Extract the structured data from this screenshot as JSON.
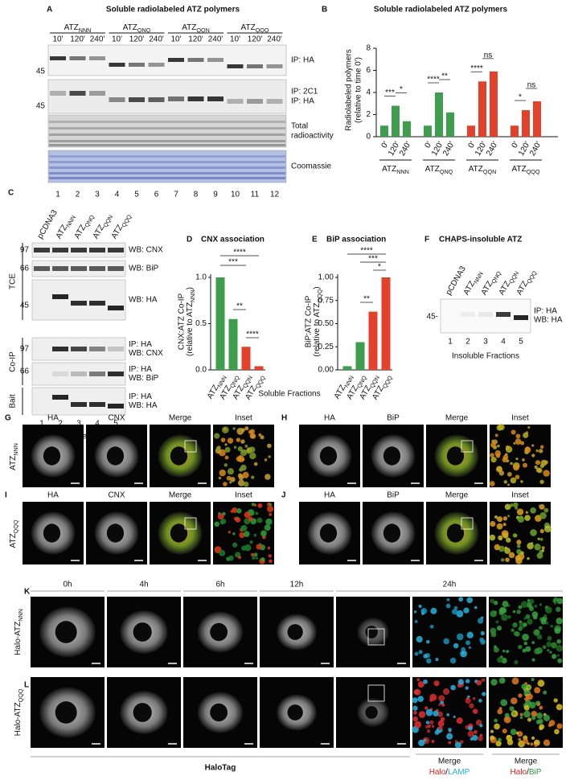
{
  "panel_a": {
    "letter": "A",
    "title": "Soluble radiolabeled ATZ polymers",
    "groups": [
      {
        "text": "ATZ",
        "sub": "NNN"
      },
      {
        "text": "ATZ",
        "sub": "QNQ"
      },
      {
        "text": "ATZ",
        "sub": "QQN"
      },
      {
        "text": "ATZ",
        "sub": "QQQ"
      }
    ],
    "times": [
      "10'",
      "120'",
      "240'"
    ],
    "blot_labels": [
      [
        "IP: HA"
      ],
      [
        "IP: 2C1",
        "IP: HA"
      ],
      [
        "Total",
        "radioactivity"
      ],
      [
        "Coomassie"
      ]
    ],
    "mw": [
      "45",
      "45"
    ],
    "lanes": [
      1,
      2,
      3,
      4,
      5,
      6,
      7,
      8,
      9,
      10,
      11,
      12
    ]
  },
  "panel_b": {
    "letter": "B",
    "title": "Soluble radiolabeled ATZ polymers",
    "type": "bar",
    "y_label": "Radiolabeled polymers",
    "y_sublabel": "(relative to time 0')",
    "ylim": [
      0,
      8
    ],
    "yticks": [
      0,
      2,
      4,
      6,
      8
    ],
    "categories": [
      "0'",
      "120'",
      "240'"
    ],
    "groups": [
      {
        "label": {
          "text": "ATZ",
          "sub": "NNN"
        },
        "color": "#3f9e4d",
        "values": [
          1,
          2.8,
          1.4
        ],
        "significance": [
          "***",
          "*"
        ]
      },
      {
        "label": {
          "text": "ATZ",
          "sub": "QNQ"
        },
        "color": "#3f9e4d",
        "values": [
          1,
          4.0,
          2.2
        ],
        "significance": [
          "****",
          "**"
        ]
      },
      {
        "label": {
          "text": "ATZ",
          "sub": "QQN"
        },
        "color": "#e2422b",
        "values": [
          1,
          5.0,
          5.9
        ],
        "significance": [
          "****",
          "ns"
        ]
      },
      {
        "label": {
          "text": "ATZ",
          "sub": "QQQ"
        },
        "color": "#e2422b",
        "values": [
          1,
          2.4,
          3.2
        ],
        "significance": [
          "*",
          "ns"
        ]
      }
    ]
  },
  "panel_c": {
    "letter": "C",
    "lane_labels": [
      {
        "text": "pCDNA3"
      },
      {
        "text": "ATZ",
        "sub": "NNN"
      },
      {
        "text": "ATZ",
        "sub": "QNQ"
      },
      {
        "text": "ATZ",
        "sub": "QQN"
      },
      {
        "text": "ATZ",
        "sub": "QQQ"
      }
    ],
    "side_labels": [
      "TCE",
      "Co-IP",
      "Bait"
    ],
    "mw": [
      "97",
      "66",
      "45",
      "97",
      "66"
    ],
    "blot_labels": [
      [
        "WB: CNX"
      ],
      [
        "WB: BiP"
      ],
      [
        "WB: HA"
      ],
      [
        "IP: HA",
        "WB: CNX"
      ],
      [
        "IP: HA",
        "WB: BiP"
      ],
      [
        "IP: HA",
        "WB: HA"
      ]
    ],
    "lanes": [
      1,
      2,
      3,
      4,
      5
    ],
    "footer": "Soluble Fractions"
  },
  "panel_d": {
    "letter": "D",
    "title": "CNX association",
    "type": "bar",
    "y_label": "CNX:ATZ Co-IP",
    "y_sublabel": {
      "text": "(relative to ATZ",
      "sub": "NNN",
      "after": ")"
    },
    "ylim": [
      0,
      1
    ],
    "yticks": [
      {
        "value": 0,
        "label": "0.0"
      },
      {
        "value": 0.5,
        "label": "0.5"
      },
      {
        "value": 1,
        "label": "1.0"
      }
    ],
    "categories": [
      {
        "text": "ATZ",
        "sub": "NNN"
      },
      {
        "text": "ATZ",
        "sub": "QNQ"
      },
      {
        "text": "ATZ",
        "sub": "QQN"
      },
      {
        "text": "ATZ",
        "sub": "QQQ"
      }
    ],
    "values": [
      1,
      0.55,
      0.25,
      0.04
    ],
    "colors": [
      "#3f9e4d",
      "#3f9e4d",
      "#e2422b",
      "#e2422b"
    ],
    "significance": [
      "****",
      "***",
      "**",
      "****"
    ]
  },
  "panel_e": {
    "letter": "E",
    "title": "BiP association",
    "type": "bar",
    "y_label": "BiP:ATZ Co-IP",
    "y_sublabel": {
      "text": "(relative to ATZ",
      "sub": "QQQ",
      "after": ")"
    },
    "ylim": [
      0,
      1
    ],
    "yticks": [
      {
        "value": 0,
        "label": "0.00"
      },
      {
        "value": 0.25,
        "label": "0.25"
      },
      {
        "value": 0.5,
        "label": "0.50"
      },
      {
        "value": 0.75,
        "label": "0.75"
      },
      {
        "value": 1,
        "label": "1.00"
      }
    ],
    "categories": [
      {
        "text": "ATZ",
        "sub": "NNN"
      },
      {
        "text": "ATZ",
        "sub": "QNQ"
      },
      {
        "text": "ATZ",
        "sub": "QQN"
      },
      {
        "text": "ATZ",
        "sub": "QQQ"
      }
    ],
    "values": [
      0.04,
      0.3,
      0.63,
      1
    ],
    "colors": [
      "#3f9e4d",
      "#3f9e4d",
      "#e2422b",
      "#e2422b"
    ],
    "significance": [
      "****",
      "***",
      "**",
      "*"
    ]
  },
  "fractions_label": "Soluble Fractions",
  "panel_f": {
    "letter": "F",
    "title": "CHAPS-insoluble ATZ",
    "lane_labels": [
      {
        "text": "pCDNA3"
      },
      {
        "text": "ATZ",
        "sub": "NNN"
      },
      {
        "text": "ATZ",
        "sub": "QNQ"
      },
      {
        "text": "ATZ",
        "sub": "QQN"
      },
      {
        "text": "ATZ",
        "sub": "QQQ"
      }
    ],
    "blot_labels": [
      "IP: HA",
      "WB: HA"
    ],
    "mw": "45-",
    "lanes": [
      1,
      2,
      3,
      4,
      5
    ],
    "footer": "Insoluble Fractions"
  },
  "panel_g": {
    "letter": "G",
    "columns": [
      "HA",
      "CNX",
      "Merge",
      "Inset"
    ],
    "row_label": {
      "text": "ATZ",
      "sub": "NNN"
    }
  },
  "panel_h": {
    "letter": "H",
    "columns": [
      "HA",
      "BiP",
      "Merge",
      "Inset"
    ]
  },
  "panel_i": {
    "letter": "I",
    "columns": [
      "HA",
      "CNX",
      "Merge",
      "Inset"
    ],
    "row_label": {
      "text": "ATZ",
      "sub": "QQQ"
    }
  },
  "panel_j": {
    "letter": "J",
    "columns": [
      "HA",
      "BiP",
      "Merge",
      "Inset"
    ]
  },
  "panel_k": {
    "letter": "K",
    "times": [
      "0h",
      "4h",
      "6h",
      "12h",
      "24h"
    ],
    "row_label": {
      "text": "Halo-ATZ",
      "sub": "NNN"
    }
  },
  "panel_l": {
    "letter": "L",
    "row_label": {
      "text": "Halo-ATZ",
      "sub": "QQQ"
    },
    "footer": "HaloTag",
    "merges": [
      {
        "title": "Merge",
        "parts": [
          "Halo",
          "/",
          "LAMP"
        ]
      },
      {
        "title": "Merge",
        "parts": [
          "Halo",
          "/",
          "BiP"
        ]
      }
    ]
  }
}
